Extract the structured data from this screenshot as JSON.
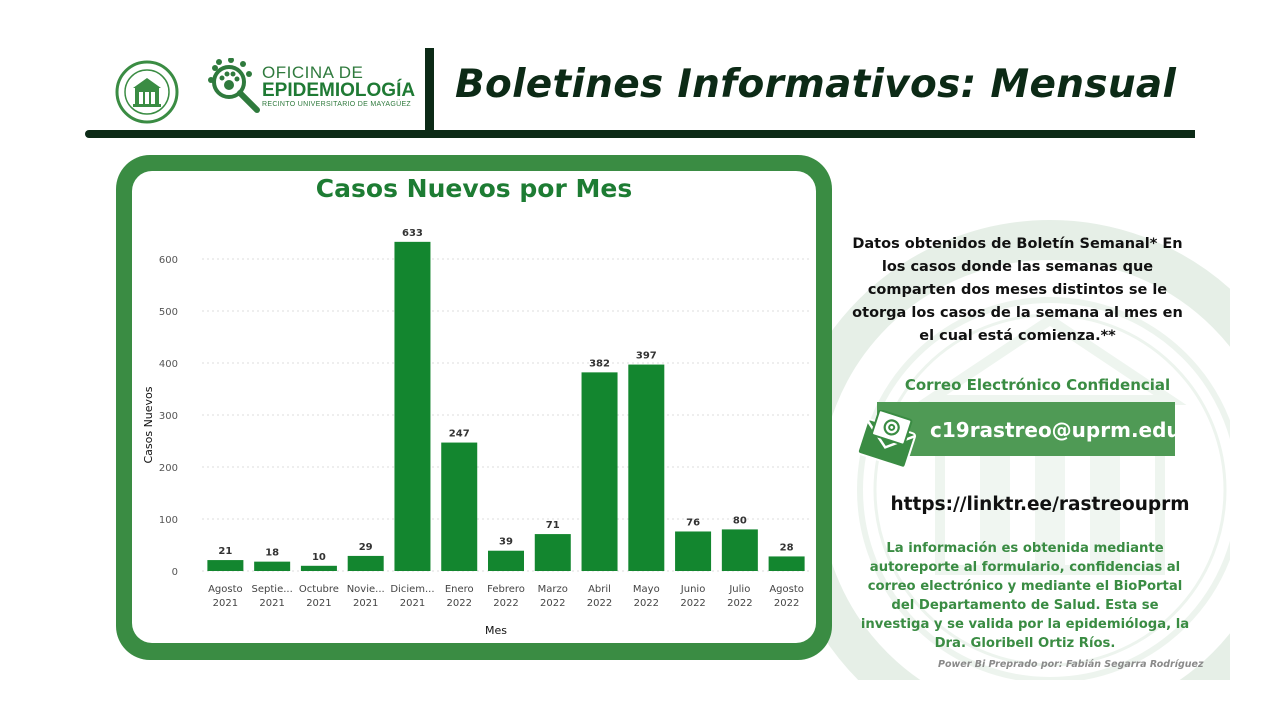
{
  "header": {
    "office_line1": "OFICINA DE",
    "office_line2": "EPIDEMIOLOGÍA",
    "office_line3": "RECINTO UNIVERSITARIO DE MAYAGÜEZ",
    "title": "Boletines Informativos:  Mensual"
  },
  "colors": {
    "bar": "#13862f",
    "frame": "#3a8c43",
    "title_green": "#1d7c33",
    "header_dark": "#0c2a16"
  },
  "chart_data": {
    "type": "bar",
    "title": "Casos Nuevos por Mes",
    "xlabel": "Mes",
    "ylabel": "Casos Nuevos",
    "ylim": [
      0,
      650
    ],
    "yticks": [
      0,
      100,
      200,
      300,
      400,
      500,
      600
    ],
    "grid": true,
    "categories": [
      [
        "Agosto",
        "2021"
      ],
      [
        "Septie...",
        "2021"
      ],
      [
        "Octubre",
        "2021"
      ],
      [
        "Novie...",
        "2021"
      ],
      [
        "Diciem...",
        "2021"
      ],
      [
        "Enero",
        "2022"
      ],
      [
        "Febrero",
        "2022"
      ],
      [
        "Marzo",
        "2022"
      ],
      [
        "Abril",
        "2022"
      ],
      [
        "Mayo",
        "2022"
      ],
      [
        "Junio",
        "2022"
      ],
      [
        "Julio",
        "2022"
      ],
      [
        "Agosto",
        "2022"
      ]
    ],
    "values": [
      21,
      18,
      10,
      29,
      633,
      247,
      39,
      71,
      382,
      397,
      76,
      80,
      28
    ]
  },
  "info": {
    "note": "Datos obtenidos de Boletín Semanal* En los casos donde las semanas que comparten dos meses distintos se le otorga los casos de la semana al mes en el cual está comienza.**",
    "correo_title": "Correo Electrónico Confidencial",
    "email": "c19rastreo@uprm.edu",
    "link": "https://linktr.ee/rastreouprm",
    "source": "La información es obtenida mediante autoreporte al formulario, confidencias al correo electrónico y mediante el BioPortal del Departamento de Salud. Esta se investiga y se valida por la epidemióloga, la Dra. Gloribell Ortiz Ríos.",
    "credit": "Power Bi Preprado por: Fabián Segarra Rodríguez"
  },
  "icons": {
    "seal": "university-seal-icon",
    "office_logo": "magnifier-paw-icon",
    "mail": "envelope-at-icon",
    "watermark": "seal-watermark-icon"
  }
}
